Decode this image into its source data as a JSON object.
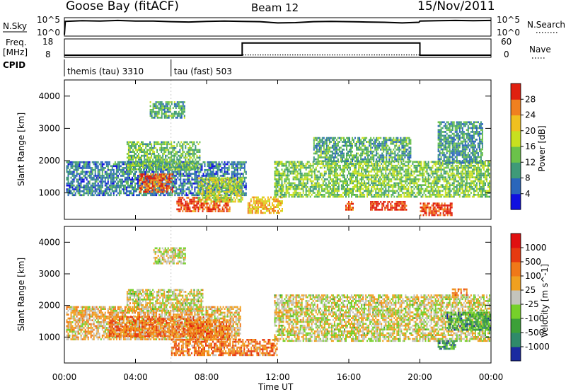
{
  "header": {
    "station": "Goose Bay (fitACF)",
    "beam": "Beam 12",
    "date": "15/Nov/2011"
  },
  "chart_data": [
    {
      "type": "line",
      "panel": "noise",
      "left_label": "N.Sky",
      "right_label": "N.Search",
      "left_ticks": [
        "10^5",
        "10^0"
      ],
      "right_ticks": [
        "10^5",
        "10^0"
      ],
      "x_range": [
        0,
        24
      ],
      "y_range": [
        0,
        5
      ],
      "series": [
        {
          "style": "solid",
          "values": [
            [
              0,
              0.2
            ],
            [
              0.05,
              4.5
            ],
            [
              1,
              4.7
            ],
            [
              2,
              4.6
            ],
            [
              3,
              4.8
            ],
            [
              4,
              4.6
            ],
            [
              5,
              4.6
            ],
            [
              6,
              4.4
            ],
            [
              7,
              4.3
            ],
            [
              8,
              4.5
            ],
            [
              9,
              4.6
            ],
            [
              10,
              4.5
            ],
            [
              11,
              4.4
            ],
            [
              12,
              4.0
            ],
            [
              13,
              4.1
            ],
            [
              14,
              4.4
            ],
            [
              15,
              4.5
            ],
            [
              16,
              4.4
            ],
            [
              17,
              4.3
            ],
            [
              18,
              4.2
            ],
            [
              19,
              4.0
            ],
            [
              19.95,
              4.2
            ],
            [
              20,
              4.6
            ],
            [
              21,
              4.7
            ],
            [
              22,
              4.8
            ],
            [
              23,
              4.7
            ],
            [
              24,
              4.8
            ]
          ]
        }
      ]
    },
    {
      "type": "line",
      "panel": "freq-nave",
      "left_label": "Freq. [MHz]",
      "right_label": "Nave",
      "left_ticks": [
        "18",
        "8"
      ],
      "right_ticks": [
        "60",
        "0"
      ],
      "x_range": [
        0,
        24
      ],
      "series": [
        {
          "style": "solid",
          "axis": "right",
          "values": [
            [
              0,
              5
            ],
            [
              10,
              5
            ],
            [
              10,
              48
            ],
            [
              20,
              48
            ],
            [
              20,
              5
            ],
            [
              24,
              5
            ]
          ]
        },
        {
          "style": "dotted",
          "axis": "left",
          "values": [
            [
              0,
              9
            ],
            [
              24,
              9
            ]
          ]
        }
      ]
    },
    {
      "type": "table",
      "panel": "cpid",
      "label": "CPID",
      "segments": [
        {
          "text": "themis (tau) 3310",
          "start": 0,
          "end": 6
        },
        {
          "text": "tau (fast) 503",
          "start": 6,
          "end": 24
        }
      ]
    },
    {
      "type": "heatmap",
      "panel": "power",
      "ylabel": "Slant Range [km]",
      "xlabel": "",
      "x_range": [
        0,
        24
      ],
      "y_range": [
        180,
        4500
      ],
      "y_ticks": [
        "1000",
        "2000",
        "3000",
        "4000"
      ],
      "colorbar": {
        "label": "Power [dB]",
        "ticks": [
          "4",
          "8",
          "12",
          "16",
          "20",
          "24",
          "28"
        ],
        "colors": [
          "#1010e0",
          "#2a66bb",
          "#3f9a78",
          "#6bc24a",
          "#c8e020",
          "#f0c020",
          "#f08020",
          "#e02010"
        ]
      },
      "regions": [
        {
          "t0": 0.1,
          "t1": 10.2,
          "r0": 900,
          "r1": 1950,
          "level": 0.25
        },
        {
          "t0": 4.2,
          "t1": 6.1,
          "r0": 1000,
          "r1": 1550,
          "level": 0.85
        },
        {
          "t0": 3.5,
          "t1": 7.6,
          "r0": 1700,
          "r1": 2550,
          "level": 0.4
        },
        {
          "t0": 4.8,
          "t1": 6.8,
          "r0": 3300,
          "r1": 3800,
          "level": 0.35
        },
        {
          "t0": 6.3,
          "t1": 9.3,
          "r0": 400,
          "r1": 850,
          "level": 0.9
        },
        {
          "t0": 7.5,
          "t1": 10,
          "r0": 700,
          "r1": 1450,
          "level": 0.55
        },
        {
          "t0": 10.3,
          "t1": 12.3,
          "r0": 350,
          "r1": 850,
          "level": 0.7
        },
        {
          "t0": 11.8,
          "t1": 23.9,
          "r0": 850,
          "r1": 1950,
          "level": 0.45
        },
        {
          "t0": 14,
          "t1": 19.5,
          "r0": 1950,
          "r1": 2700,
          "level": 0.35
        },
        {
          "t0": 15.8,
          "t1": 16.2,
          "r0": 450,
          "r1": 700,
          "level": 0.9
        },
        {
          "t0": 17.2,
          "t1": 19.2,
          "r0": 450,
          "r1": 700,
          "level": 0.95
        },
        {
          "t0": 20,
          "t1": 21.8,
          "r0": 280,
          "r1": 700,
          "level": 0.92
        },
        {
          "t0": 21,
          "t1": 23.5,
          "r0": 1900,
          "r1": 3200,
          "level": 0.3
        }
      ]
    },
    {
      "type": "heatmap",
      "panel": "velocity",
      "ylabel": "Slant Range [km]",
      "xlabel": "Time UT",
      "x_range": [
        0,
        24
      ],
      "y_range": [
        180,
        4500
      ],
      "x_ticks": [
        "00:00",
        "04:00",
        "08:00",
        "12:00",
        "16:00",
        "20:00",
        "00:00"
      ],
      "y_ticks": [
        "1000",
        "2000",
        "3000",
        "4000"
      ],
      "colorbar": {
        "label": "Velocity [m s^-1]",
        "ticks": [
          "1000",
          "500",
          "100",
          "25",
          "-25",
          "-100",
          "-500",
          "-1000"
        ],
        "colors": [
          "#1a2aa0",
          "#2f8a6a",
          "#3ca038",
          "#76d02a",
          "#c4c4bc",
          "#f0a020",
          "#f07818",
          "#e63a10",
          "#e01010"
        ]
      },
      "regions": [
        {
          "t0": 0.1,
          "t1": 9.9,
          "r0": 900,
          "r1": 1950,
          "level": 0.58
        },
        {
          "t0": 2.5,
          "t1": 7.8,
          "r0": 1000,
          "r1": 1650,
          "level": 0.7
        },
        {
          "t0": 3.5,
          "t1": 7.8,
          "r0": 1800,
          "r1": 2500,
          "level": 0.5
        },
        {
          "t0": 5,
          "t1": 6.8,
          "r0": 3300,
          "r1": 3800,
          "level": 0.5
        },
        {
          "t0": 6,
          "t1": 12,
          "r0": 400,
          "r1": 900,
          "level": 0.7
        },
        {
          "t0": 7,
          "t1": 9.3,
          "r0": 900,
          "r1": 1550,
          "level": 0.72
        },
        {
          "t0": 11.8,
          "t1": 23.9,
          "r0": 850,
          "r1": 2350,
          "level": 0.5
        },
        {
          "t0": 21.5,
          "t1": 23.9,
          "r0": 1200,
          "r1": 1800,
          "level": 0.25
        },
        {
          "t0": 21,
          "t1": 22,
          "r0": 600,
          "r1": 850,
          "level": 0.25
        },
        {
          "t0": 21.8,
          "t1": 22.6,
          "r0": 2300,
          "r1": 2500,
          "level": 0.7
        }
      ]
    }
  ]
}
